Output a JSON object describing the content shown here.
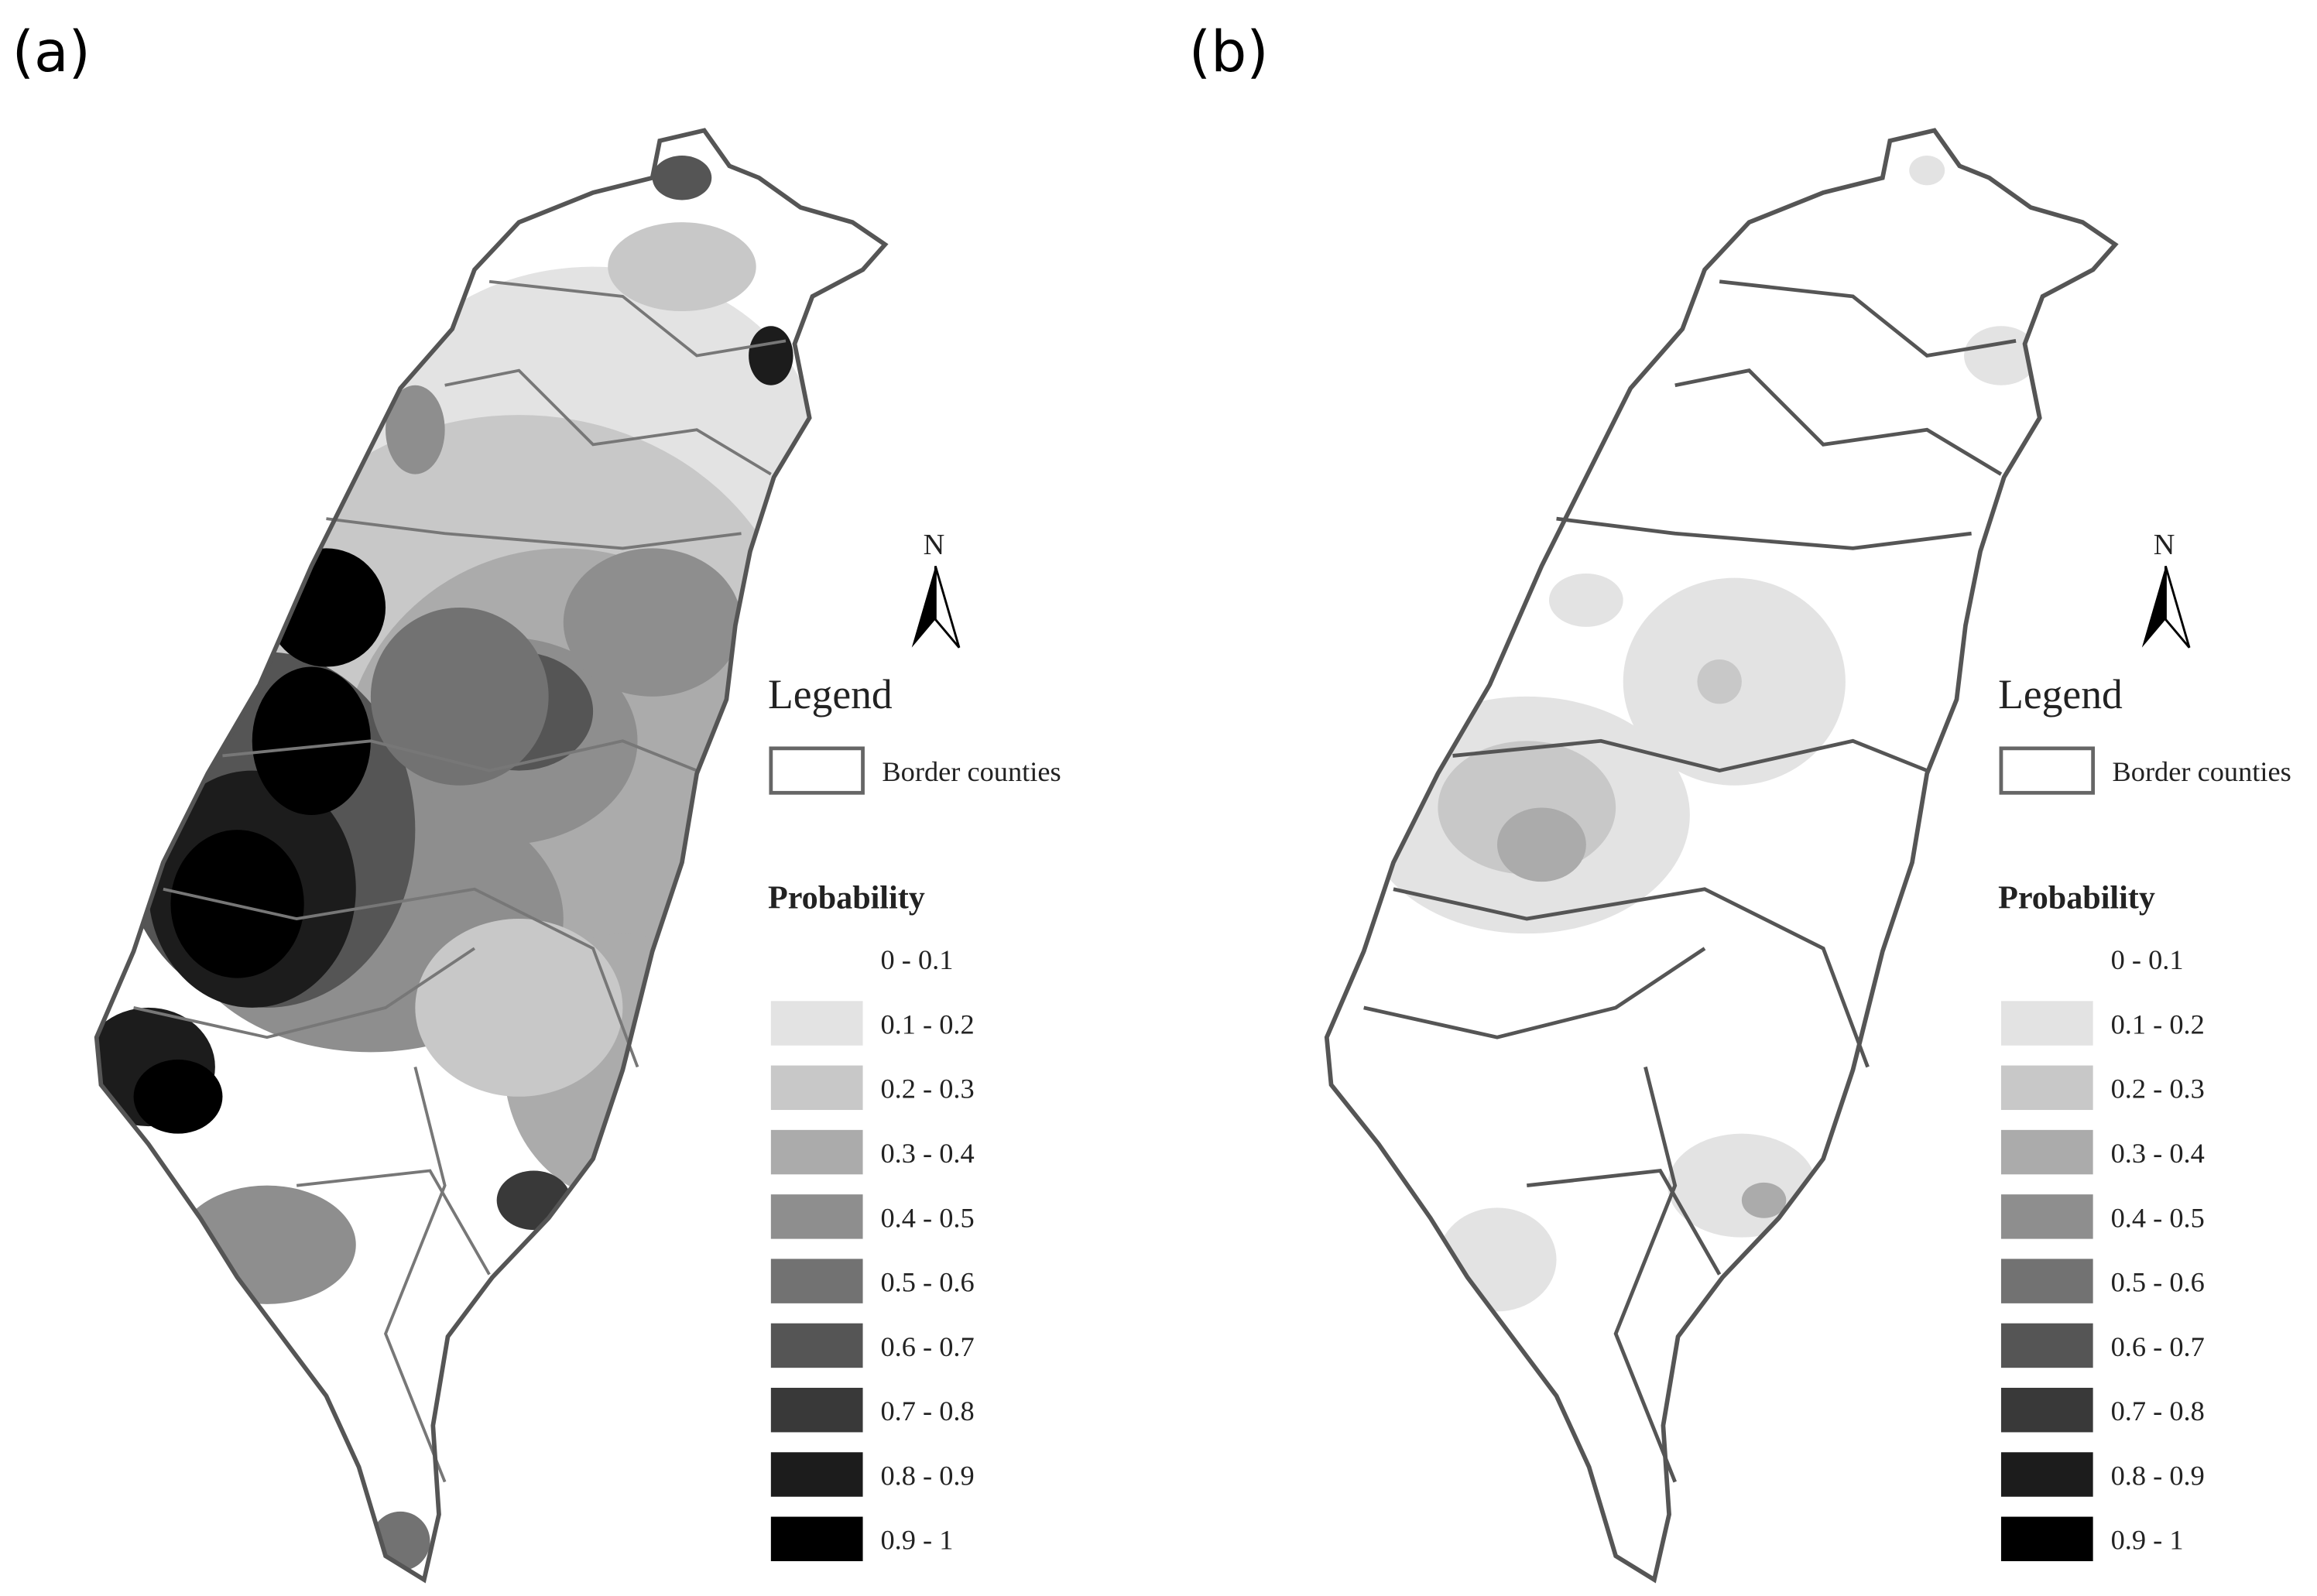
{
  "panels": [
    {
      "label": "(a)",
      "north": "N",
      "legend_title": "Legend",
      "border_label": "Border counties",
      "probability_title": "Probability"
    },
    {
      "label": "(b)",
      "north": "N",
      "legend_title": "Legend",
      "border_label": "Border counties",
      "probability_title": "Probability"
    }
  ],
  "classes": [
    {
      "label": "0 - 0.1",
      "color": "#ffffff"
    },
    {
      "label": "0.1 - 0.2",
      "color": "#e3e3e3"
    },
    {
      "label": "0.2 - 0.3",
      "color": "#c8c8c8"
    },
    {
      "label": "0.3 - 0.4",
      "color": "#ababab"
    },
    {
      "label": "0.4 - 0.5",
      "color": "#8e8e8e"
    },
    {
      "label": "0.5 - 0.6",
      "color": "#727272"
    },
    {
      "label": "0.6 - 0.7",
      "color": "#555555"
    },
    {
      "label": "0.7 - 0.8",
      "color": "#393939"
    },
    {
      "label": "0.8 - 0.9",
      "color": "#1c1c1c"
    },
    {
      "label": "0.9 - 1",
      "color": "#000000"
    }
  ]
}
